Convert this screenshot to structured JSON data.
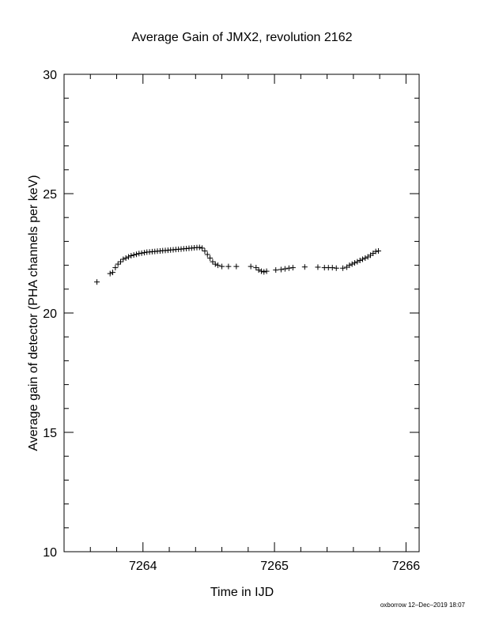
{
  "chart_data": {
    "type": "scatter",
    "title": "Average Gain of JMX2, revolution 2162",
    "xlabel": "Time in IJD",
    "ylabel": "Average gain of detector (PHA channels per keV)",
    "xlim": [
      7263.4,
      7266.1
    ],
    "ylim": [
      10,
      30
    ],
    "x_ticks": [
      7264,
      7265,
      7266
    ],
    "x_tick_labels": [
      "7264",
      "7265",
      "7266"
    ],
    "y_ticks": [
      10,
      15,
      20,
      25,
      30
    ],
    "y_tick_labels": [
      "10",
      "15",
      "20",
      "25",
      "30"
    ],
    "grid": false,
    "marker": "+",
    "color": "#000000",
    "series": [
      {
        "points": [
          [
            7263.65,
            21.3
          ],
          [
            7263.75,
            21.65
          ],
          [
            7263.77,
            21.7
          ],
          [
            7263.79,
            21.9
          ],
          [
            7263.81,
            22.05
          ],
          [
            7263.83,
            22.15
          ],
          [
            7263.85,
            22.25
          ],
          [
            7263.87,
            22.3
          ],
          [
            7263.89,
            22.35
          ],
          [
            7263.91,
            22.4
          ],
          [
            7263.93,
            22.43
          ],
          [
            7263.95,
            22.46
          ],
          [
            7263.97,
            22.49
          ],
          [
            7263.99,
            22.51
          ],
          [
            7264.01,
            22.53
          ],
          [
            7264.03,
            22.55
          ],
          [
            7264.05,
            22.56
          ],
          [
            7264.07,
            22.57
          ],
          [
            7264.09,
            22.58
          ],
          [
            7264.11,
            22.59
          ],
          [
            7264.13,
            22.6
          ],
          [
            7264.15,
            22.61
          ],
          [
            7264.17,
            22.62
          ],
          [
            7264.19,
            22.63
          ],
          [
            7264.21,
            22.64
          ],
          [
            7264.23,
            22.65
          ],
          [
            7264.25,
            22.66
          ],
          [
            7264.27,
            22.67
          ],
          [
            7264.29,
            22.68
          ],
          [
            7264.31,
            22.69
          ],
          [
            7264.33,
            22.7
          ],
          [
            7264.35,
            22.71
          ],
          [
            7264.37,
            22.72
          ],
          [
            7264.39,
            22.73
          ],
          [
            7264.41,
            22.74
          ],
          [
            7264.43,
            22.75
          ],
          [
            7264.45,
            22.72
          ],
          [
            7264.47,
            22.6
          ],
          [
            7264.49,
            22.45
          ],
          [
            7264.51,
            22.3
          ],
          [
            7264.53,
            22.15
          ],
          [
            7264.55,
            22.05
          ],
          [
            7264.57,
            22.0
          ],
          [
            7264.6,
            21.95
          ],
          [
            7264.65,
            21.95
          ],
          [
            7264.71,
            21.95
          ],
          [
            7264.82,
            21.95
          ],
          [
            7264.86,
            21.9
          ],
          [
            7264.88,
            21.8
          ],
          [
            7264.9,
            21.75
          ],
          [
            7264.92,
            21.72
          ],
          [
            7264.94,
            21.75
          ],
          [
            7265.01,
            21.8
          ],
          [
            7265.05,
            21.82
          ],
          [
            7265.08,
            21.85
          ],
          [
            7265.11,
            21.88
          ],
          [
            7265.14,
            21.9
          ],
          [
            7265.23,
            21.93
          ],
          [
            7265.33,
            21.92
          ],
          [
            7265.38,
            21.9
          ],
          [
            7265.41,
            21.9
          ],
          [
            7265.44,
            21.9
          ],
          [
            7265.47,
            21.88
          ],
          [
            7265.52,
            21.88
          ],
          [
            7265.55,
            21.92
          ],
          [
            7265.57,
            22.0
          ],
          [
            7265.59,
            22.05
          ],
          [
            7265.61,
            22.1
          ],
          [
            7265.63,
            22.15
          ],
          [
            7265.65,
            22.2
          ],
          [
            7265.67,
            22.25
          ],
          [
            7265.69,
            22.3
          ],
          [
            7265.71,
            22.35
          ],
          [
            7265.73,
            22.42
          ],
          [
            7265.75,
            22.5
          ],
          [
            7265.77,
            22.58
          ],
          [
            7265.79,
            22.6
          ]
        ]
      }
    ]
  },
  "footer": {
    "credit": "oxborrow 12–Dec–2019 18:07"
  }
}
